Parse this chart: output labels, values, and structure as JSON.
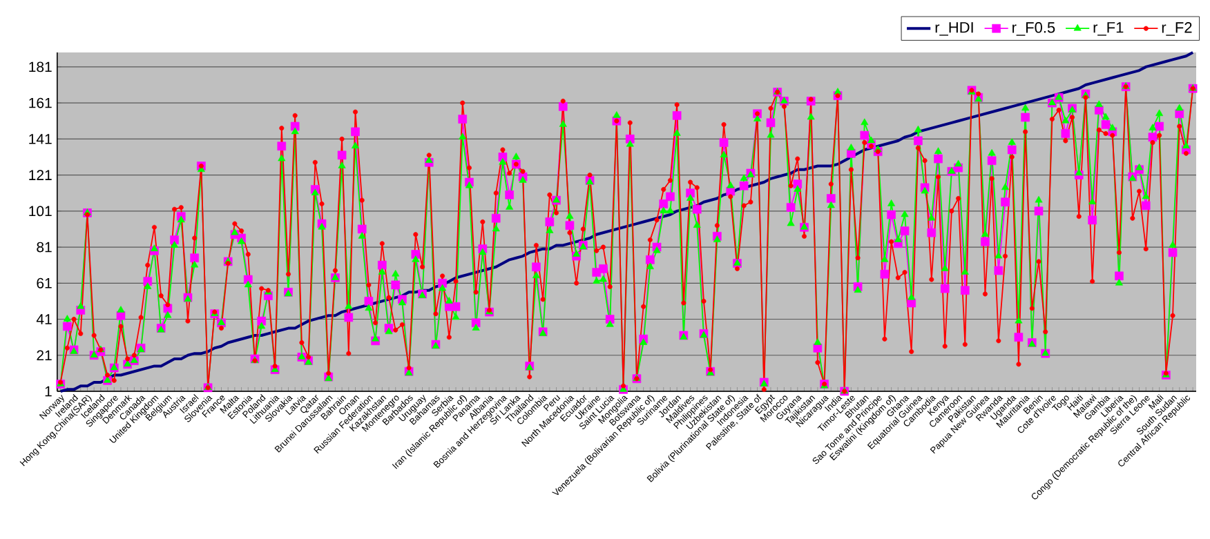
{
  "chart_data": {
    "type": "line",
    "categories": [
      "Norway",
      null,
      "Ireland",
      null,
      "Hong Kong,China(SAR)",
      null,
      "Iceland",
      null,
      "Singapore",
      null,
      "Denmark",
      null,
      "Canada",
      null,
      "United Kingdom",
      null,
      "Belgium",
      null,
      "Austria",
      null,
      "Israel",
      null,
      "Slovenia",
      null,
      "France",
      null,
      "Malta",
      null,
      "Estonia",
      null,
      "Poland",
      null,
      "Lithuania",
      null,
      "Slovakia",
      null,
      "Latvia",
      null,
      "Qatar",
      null,
      "Brunei Darussalam",
      null,
      "Bahrain",
      null,
      "Oman",
      null,
      "Russian Federation",
      null,
      "Kazakhstan",
      null,
      "Montenegro",
      null,
      "Barbados",
      null,
      "Uruguay",
      null,
      "Bahamas",
      null,
      "Serbia",
      null,
      "Iran (Islamic Republic of)",
      null,
      "Panama",
      null,
      "Albania",
      null,
      "Bosnia and Herzegovina",
      null,
      "Sri Lanka",
      null,
      "Thailand",
      null,
      "Colombia",
      null,
      "Peru",
      null,
      "North Macedonia",
      null,
      "Ecuador",
      null,
      "Ukraine",
      null,
      "Saint Lucia",
      null,
      "Mongolia",
      null,
      "Botswana",
      null,
      "Venezuela (Bolivarian Republic of)",
      null,
      "Suriname",
      null,
      "Jordan",
      null,
      "Maldives",
      null,
      "Philippines",
      null,
      "Uzbekistan",
      null,
      "Bolivia (Plurinational State of)",
      null,
      "Indonesia",
      null,
      "Palestine, State of",
      null,
      "Egypt",
      null,
      "Morocco",
      null,
      "Guyana",
      null,
      "Tajikistan",
      null,
      "Nicaragua",
      null,
      "India",
      null,
      "Timor-Leste",
      null,
      "Bhutan",
      null,
      "Sao Tome and Principe",
      null,
      "Eswatini (Kingdom of)",
      null,
      "Ghana",
      null,
      "Equatorial Guinea",
      null,
      "Cambodia",
      null,
      "Kenya",
      null,
      "Cameroon",
      null,
      "Pakistan",
      null,
      "Papua New Guinea",
      null,
      "Rwanda",
      null,
      "Uganda",
      null,
      "Mauritania",
      null,
      "Benin",
      null,
      "Cote d'Ivoire",
      null,
      "Togo",
      null,
      "Haiti",
      null,
      "Malawi",
      null,
      "Gambia",
      null,
      "Liberia",
      null,
      "Congo (Democratic Republic of the)",
      null,
      "Sierra Leone",
      null,
      "Mali",
      null,
      "South Sudan",
      null,
      "Central African Republic",
      null
    ],
    "series": [
      {
        "name": "r_HDI",
        "color": "#000080",
        "marker": "none",
        "values": [
          1,
          2,
          2,
          4,
          4,
          6,
          6,
          8,
          10,
          10,
          11,
          12,
          13,
          14,
          15,
          15,
          17,
          19,
          19,
          21,
          22,
          22,
          23,
          25,
          26,
          28,
          29,
          30,
          31,
          32,
          32,
          33,
          34,
          35,
          36,
          36,
          38,
          40,
          41,
          42,
          43,
          43,
          45,
          46,
          47,
          48,
          49,
          50,
          51,
          52,
          53,
          54,
          56,
          56,
          57,
          57,
          59,
          60,
          62,
          64,
          65,
          66,
          67,
          68,
          69,
          70,
          72,
          74,
          75,
          76,
          78,
          79,
          80,
          80,
          82,
          82,
          83,
          84,
          85,
          86,
          88,
          89,
          90,
          91,
          92,
          93,
          94,
          95,
          96,
          97,
          98,
          99,
          101,
          102,
          103,
          104,
          106,
          107,
          108,
          110,
          111,
          113,
          114,
          115,
          116,
          117,
          119,
          120,
          121,
          122,
          124,
          124,
          125,
          126,
          126,
          126,
          127,
          129,
          131,
          133,
          135,
          136,
          137,
          138,
          139,
          140,
          142,
          143,
          145,
          146,
          147,
          148,
          149,
          150,
          151,
          152,
          153,
          154,
          155,
          156,
          157,
          158,
          159,
          160,
          161,
          162,
          163,
          164,
          165,
          166,
          167,
          168,
          169,
          171,
          172,
          173,
          174,
          175,
          176,
          177,
          178,
          179,
          181,
          182,
          183,
          184,
          185,
          186,
          187,
          189
        ]
      },
      {
        "name": "r_F0.5",
        "color": "#ff00ff",
        "marker": "square",
        "values": [
          5,
          37,
          24,
          46,
          100,
          21,
          23,
          7,
          14,
          43,
          16,
          18,
          25,
          62,
          79,
          36,
          47,
          85,
          98,
          53,
          75,
          126,
          3,
          44,
          39,
          73,
          88,
          86,
          63,
          19,
          40,
          54,
          13,
          137,
          56,
          148,
          20,
          18,
          113,
          94,
          9,
          64,
          132,
          42,
          145,
          91,
          51,
          29,
          71,
          36,
          60,
          52,
          12,
          77,
          55,
          128,
          27,
          61,
          48,
          48,
          152,
          117,
          39,
          80,
          45,
          97,
          131,
          110,
          127,
          120,
          15,
          70,
          34,
          95,
          107,
          159,
          93,
          76,
          82,
          118,
          67,
          69,
          41,
          151,
          2,
          141,
          8,
          30,
          74,
          81,
          105,
          109,
          154,
          32,
          111,
          102,
          33,
          12,
          87,
          139,
          112,
          72,
          115,
          122,
          155,
          6,
          150,
          167,
          162,
          103,
          116,
          92,
          162,
          25,
          5,
          108,
          165,
          1,
          133,
          59,
          143,
          138,
          134,
          66,
          99,
          83,
          90,
          50,
          140,
          114,
          89,
          130,
          58,
          123,
          125,
          57,
          168,
          164,
          84,
          129,
          68,
          106,
          135,
          31,
          153,
          28,
          101,
          22,
          161,
          164,
          144,
          158,
          121,
          166,
          96,
          157,
          149,
          145,
          65,
          170,
          120,
          124,
          104,
          142,
          148,
          10,
          78,
          155,
          135,
          169
        ]
      },
      {
        "name": "r_F1",
        "color": "#00ff00",
        "marker": "triangle",
        "values": [
          5,
          41,
          23,
          48,
          100,
          21,
          24,
          7,
          14,
          46,
          16,
          18,
          24,
          59,
          80,
          35,
          43,
          82,
          96,
          52,
          71,
          124,
          3,
          44,
          39,
          73,
          89,
          84,
          60,
          18,
          37,
          56,
          13,
          130,
          55,
          145,
          20,
          17,
          111,
          92,
          8,
          64,
          126,
          48,
          137,
          87,
          47,
          30,
          67,
          34,
          66,
          50,
          11,
          74,
          54,
          129,
          26,
          58,
          51,
          42,
          142,
          115,
          36,
          78,
          45,
          91,
          128,
          103,
          131,
          118,
          14,
          65,
          33,
          90,
          107,
          149,
          98,
          77,
          81,
          117,
          62,
          63,
          38,
          154,
          2,
          138,
          8,
          28,
          70,
          79,
          101,
          101,
          144,
          31,
          108,
          93,
          32,
          11,
          85,
          132,
          115,
          72,
          119,
          121,
          152,
          5,
          143,
          167,
          162,
          94,
          113,
          92,
          153,
          28,
          4,
          104,
          167,
          1,
          136,
          57,
          150,
          140,
          135,
          74,
          105,
          85,
          99,
          53,
          146,
          112,
          97,
          134,
          69,
          123,
          127,
          67,
          167,
          163,
          88,
          133,
          76,
          114,
          139,
          40,
          158,
          27,
          107,
          22,
          161,
          164,
          151,
          157,
          122,
          165,
          106,
          160,
          153,
          147,
          61,
          170,
          119,
          125,
          109,
          147,
          155,
          10,
          82,
          158,
          137,
          169
        ]
      },
      {
        "name": "r_F2",
        "color": "#ff0000",
        "marker": "circle",
        "values": [
          6,
          25,
          41,
          33,
          99,
          32,
          24,
          10,
          7,
          37,
          19,
          21,
          42,
          71,
          92,
          54,
          49,
          102,
          103,
          40,
          86,
          126,
          3,
          45,
          36,
          72,
          94,
          90,
          77,
          18,
          58,
          57,
          15,
          147,
          66,
          154,
          28,
          20,
          128,
          105,
          11,
          68,
          141,
          22,
          156,
          107,
          60,
          39,
          83,
          53,
          35,
          38,
          14,
          88,
          70,
          132,
          44,
          65,
          31,
          62,
          161,
          125,
          56,
          95,
          46,
          111,
          135,
          122,
          127,
          123,
          9,
          82,
          52,
          110,
          100,
          162,
          89,
          61,
          91,
          121,
          79,
          81,
          59,
          151,
          4,
          150,
          8,
          48,
          85,
          96,
          113,
          118,
          160,
          50,
          117,
          114,
          51,
          13,
          93,
          149,
          109,
          69,
          104,
          106,
          155,
          2,
          158,
          167,
          159,
          115,
          130,
          87,
          163,
          17,
          5,
          116,
          165,
          1,
          124,
          75,
          139,
          137,
          134,
          30,
          84,
          64,
          67,
          23,
          136,
          129,
          63,
          120,
          26,
          101,
          108,
          27,
          168,
          166,
          55,
          119,
          29,
          76,
          131,
          16,
          145,
          47,
          73,
          34,
          152,
          157,
          140,
          153,
          98,
          164,
          62,
          146,
          144,
          143,
          78,
          170,
          97,
          112,
          80,
          139,
          143,
          11,
          43,
          148,
          133,
          169
        ]
      }
    ],
    "ylim": [
      1,
      189
    ],
    "yticks": [
      1,
      21,
      41,
      61,
      81,
      101,
      121,
      141,
      161,
      181
    ],
    "grid": "y",
    "legend": "top right",
    "line_style": "solid"
  }
}
